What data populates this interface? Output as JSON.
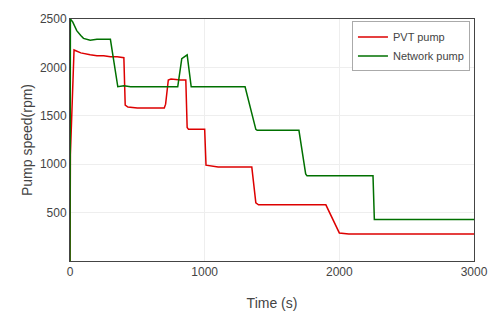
{
  "chart_data": {
    "type": "line",
    "xlabel": "Time (s)",
    "ylabel": "Pump speed(rpm)",
    "xlim": [
      0,
      3000
    ],
    "ylim": [
      0,
      2500
    ],
    "xticks": [
      0,
      1000,
      2000,
      3000
    ],
    "yticks": [
      500,
      1000,
      1500,
      2000,
      2500
    ],
    "grid": true,
    "legend": "upper right",
    "series": [
      {
        "name": "PVT pump",
        "color": "#dd0000",
        "x": [
          0,
          3,
          30,
          80,
          150,
          200,
          250,
          300,
          350,
          400,
          410,
          430,
          500,
          550,
          600,
          650,
          700,
          710,
          730,
          750,
          800,
          820,
          860,
          870,
          880,
          950,
          1000,
          1010,
          1100,
          1200,
          1300,
          1350,
          1380,
          1400,
          1450,
          1500,
          1600,
          1650,
          1680,
          1700,
          1750,
          1800,
          1900,
          2000,
          2050,
          2070,
          2100,
          2200,
          2250,
          2260,
          2400,
          2500,
          2600,
          2700,
          2800,
          2900,
          3000
        ],
        "values": [
          0,
          1100,
          2180,
          2150,
          2130,
          2120,
          2120,
          2110,
          2110,
          2100,
          1610,
          1590,
          1580,
          1580,
          1580,
          1580,
          1580,
          1620,
          1870,
          1880,
          1870,
          1870,
          1870,
          1380,
          1360,
          1360,
          1360,
          990,
          970,
          970,
          970,
          970,
          600,
          580,
          580,
          580,
          580,
          580,
          580,
          580,
          580,
          580,
          580,
          290,
          280,
          280,
          280,
          280,
          280,
          280,
          280,
          280,
          280,
          280,
          280,
          280,
          280
        ]
      },
      {
        "name": "Network pump",
        "color": "#007000",
        "x": [
          0,
          3,
          20,
          50,
          80,
          100,
          150,
          200,
          300,
          350,
          355,
          400,
          450,
          500,
          600,
          700,
          750,
          800,
          830,
          860,
          870,
          900,
          1000,
          1100,
          1200,
          1300,
          1380,
          1390,
          1500,
          1600,
          1700,
          1750,
          1760,
          1900,
          2000,
          2100,
          2200,
          2250,
          2260,
          2400,
          2500,
          2600,
          2700,
          2800,
          2900,
          3000
        ],
        "values": [
          0,
          2500,
          2470,
          2380,
          2330,
          2300,
          2280,
          2290,
          2290,
          1810,
          1800,
          1810,
          1800,
          1800,
          1800,
          1800,
          1800,
          1800,
          2090,
          2120,
          2130,
          1800,
          1800,
          1800,
          1800,
          1800,
          1360,
          1350,
          1350,
          1350,
          1350,
          900,
          880,
          880,
          880,
          880,
          880,
          880,
          430,
          430,
          430,
          430,
          430,
          430,
          430,
          430
        ]
      }
    ]
  }
}
